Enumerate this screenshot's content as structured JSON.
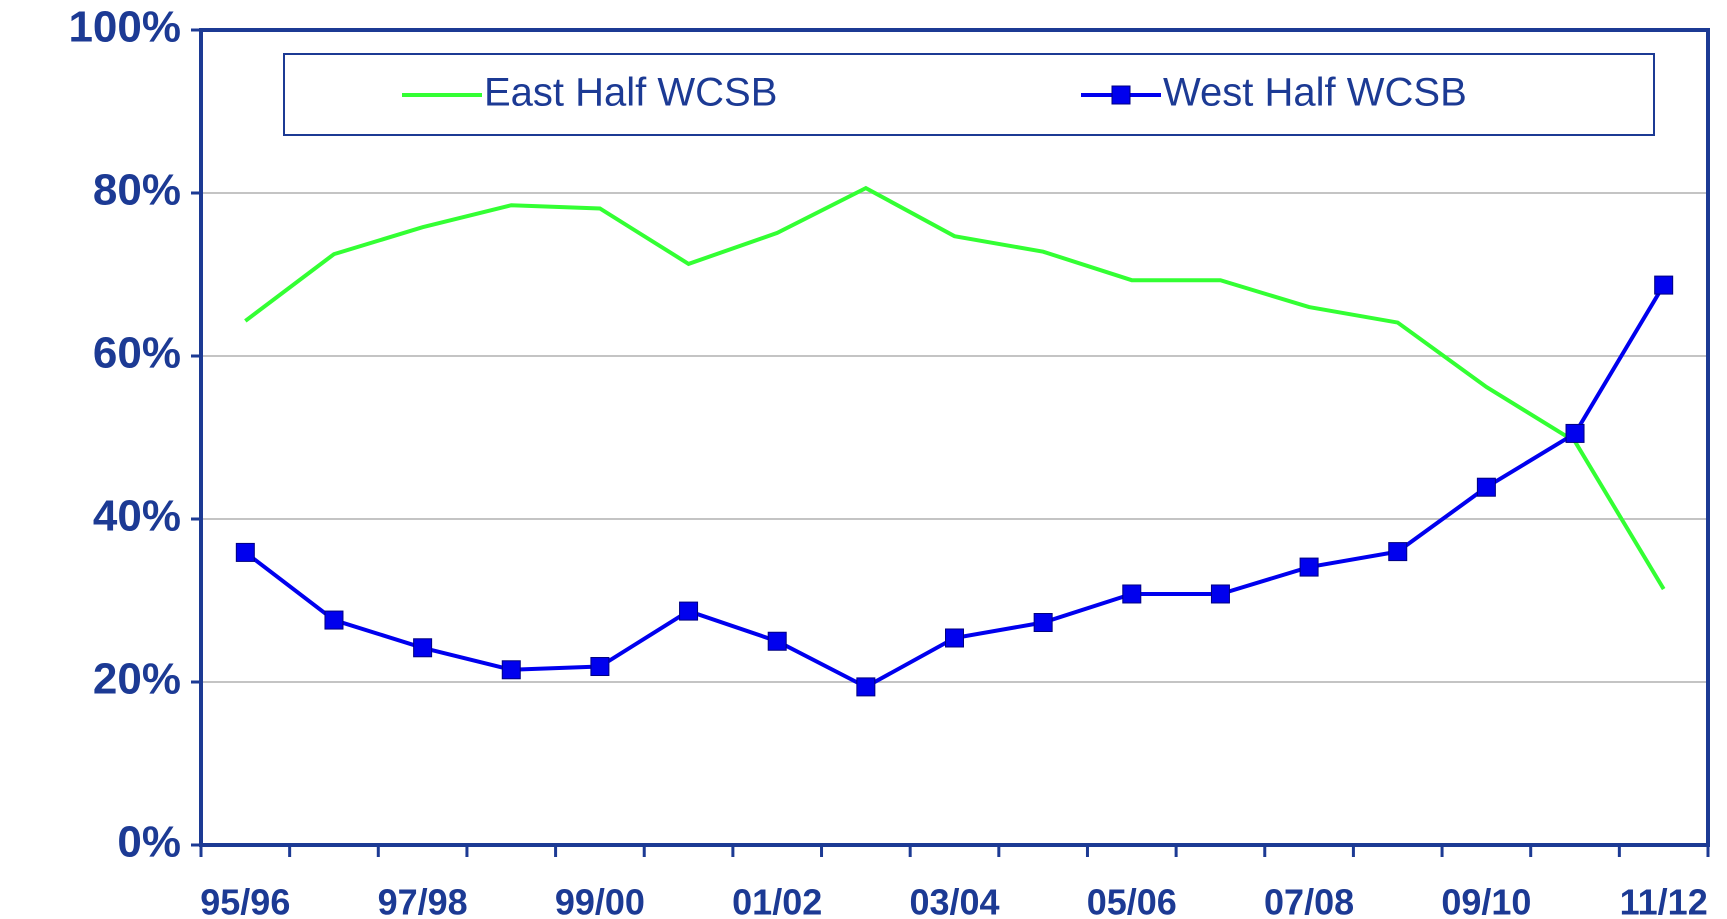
{
  "chart_data": {
    "type": "line",
    "categories": [
      "95/96",
      null,
      "97/98",
      null,
      "99/00",
      null,
      "01/02",
      null,
      "03/04",
      null,
      "05/06",
      null,
      "07/08",
      null,
      "09/10",
      null,
      "11/12"
    ],
    "series": [
      {
        "name": "East Half WCSB",
        "color": "#33ff33",
        "marker": false,
        "values": [
          64.3,
          72.5,
          75.8,
          78.5,
          78.1,
          71.3,
          75.1,
          80.6,
          74.7,
          72.8,
          69.3,
          69.3,
          66.0,
          64.1,
          56.2,
          49.5,
          31.4
        ]
      },
      {
        "name": "West Half WCSB",
        "color": "#0000ee",
        "marker": true,
        "values": [
          35.9,
          27.6,
          24.2,
          21.5,
          21.9,
          28.7,
          25.0,
          19.4,
          25.4,
          27.3,
          30.8,
          30.8,
          34.1,
          36.0,
          43.9,
          50.5,
          68.7
        ]
      }
    ],
    "ylim": [
      0,
      100
    ],
    "yticks": [
      {
        "value": 0,
        "label": "0%"
      },
      {
        "value": 20,
        "label": "20%"
      },
      {
        "value": 40,
        "label": "40%"
      },
      {
        "value": 60,
        "label": "60%"
      },
      {
        "value": 80,
        "label": "80%"
      },
      {
        "value": 100,
        "label": "100%"
      }
    ],
    "grid": true
  }
}
